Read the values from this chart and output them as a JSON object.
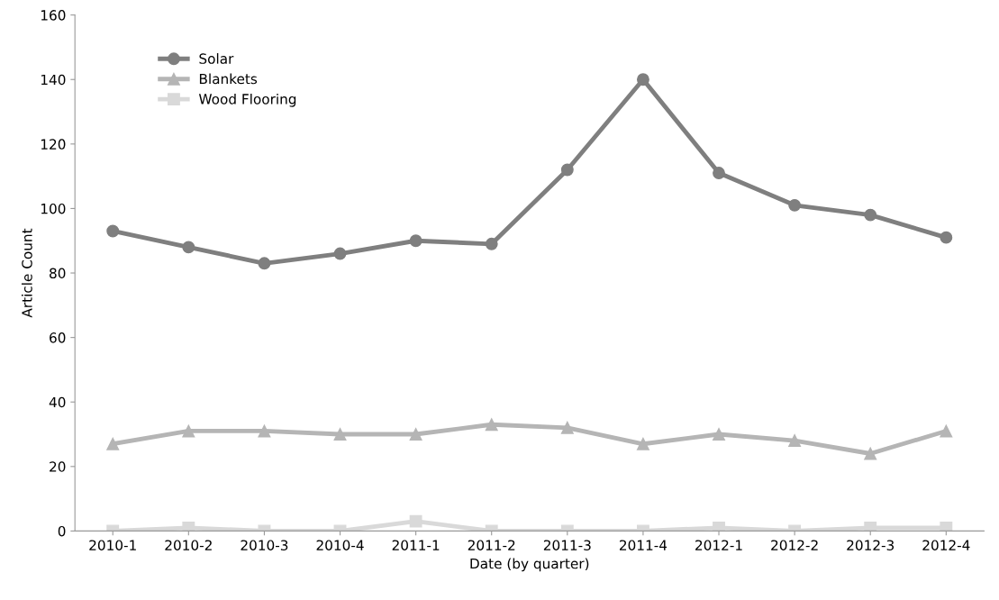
{
  "chart_data": {
    "type": "line",
    "xlabel": "Date (by quarter)",
    "ylabel": "Article Count",
    "categories": [
      "2010-1",
      "2010-2",
      "2010-3",
      "2010-4",
      "2011-1",
      "2011-2",
      "2011-3",
      "2011-4",
      "2012-1",
      "2012-2",
      "2012-3",
      "2012-4"
    ],
    "series": [
      {
        "name": "Solar",
        "color": "#7f7f7f",
        "marker": "circle",
        "values": [
          93,
          88,
          83,
          86,
          90,
          89,
          112,
          140,
          111,
          101,
          98,
          91
        ]
      },
      {
        "name": "Blankets",
        "color": "#b5b5b5",
        "marker": "triangle",
        "values": [
          27,
          31,
          31,
          30,
          30,
          33,
          32,
          27,
          30,
          28,
          24,
          31
        ]
      },
      {
        "name": "Wood Flooring",
        "color": "#d9d9d9",
        "marker": "square",
        "values": [
          0,
          1,
          0,
          0,
          3,
          0,
          0,
          0,
          1,
          0,
          1,
          1
        ]
      }
    ],
    "ylim": [
      0,
      160
    ],
    "yticks": [
      0,
      20,
      40,
      60,
      80,
      100,
      120,
      140,
      160
    ],
    "grid": false,
    "legend": "top left"
  }
}
